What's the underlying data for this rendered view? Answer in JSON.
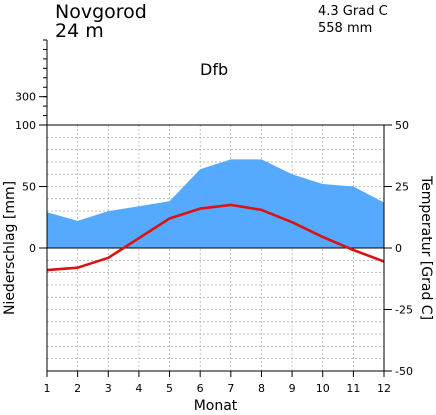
{
  "header": {
    "station": "Novgorod",
    "elevation": "24 m",
    "annual_temperature": "4.3 Grad C",
    "annual_precipitation": "558 mm",
    "koppen_class": "Dfb"
  },
  "chart_data": {
    "type": "climate-diagram",
    "categories": [
      "1",
      "2",
      "3",
      "4",
      "5",
      "6",
      "7",
      "8",
      "9",
      "10",
      "11",
      "12"
    ],
    "xlabel": "Monat",
    "ylabel_left": "Niederschlag [mm]",
    "ylabel_right": "Temperatur [Grad C]",
    "left_axis": {
      "ylim": [
        -100,
        100
      ],
      "ticks": [
        "100",
        "50",
        "0"
      ],
      "tick_values": [
        100,
        50,
        0
      ]
    },
    "left_upper_axis": {
      "ticks": [
        "300"
      ],
      "tick_values": [
        300
      ]
    },
    "right_axis": {
      "ylim": [
        -50,
        50
      ],
      "ticks": [
        "50",
        "25",
        "0",
        "-25",
        "-50"
      ],
      "tick_values": [
        50,
        25,
        0,
        -25,
        -50
      ]
    },
    "grid": true,
    "series": [
      {
        "kind": "precipitation",
        "unit": "mm",
        "color": "#55aaff",
        "values": [
          29,
          22,
          30,
          34,
          38,
          64,
          72,
          72,
          60,
          52,
          50,
          37
        ]
      },
      {
        "kind": "temperature",
        "unit": "Grad C",
        "color": "#dd1111",
        "values": [
          -9,
          -8,
          -4,
          4,
          12,
          16,
          17.5,
          15.5,
          10.5,
          4.5,
          -0.8,
          -5.5
        ]
      }
    ]
  }
}
